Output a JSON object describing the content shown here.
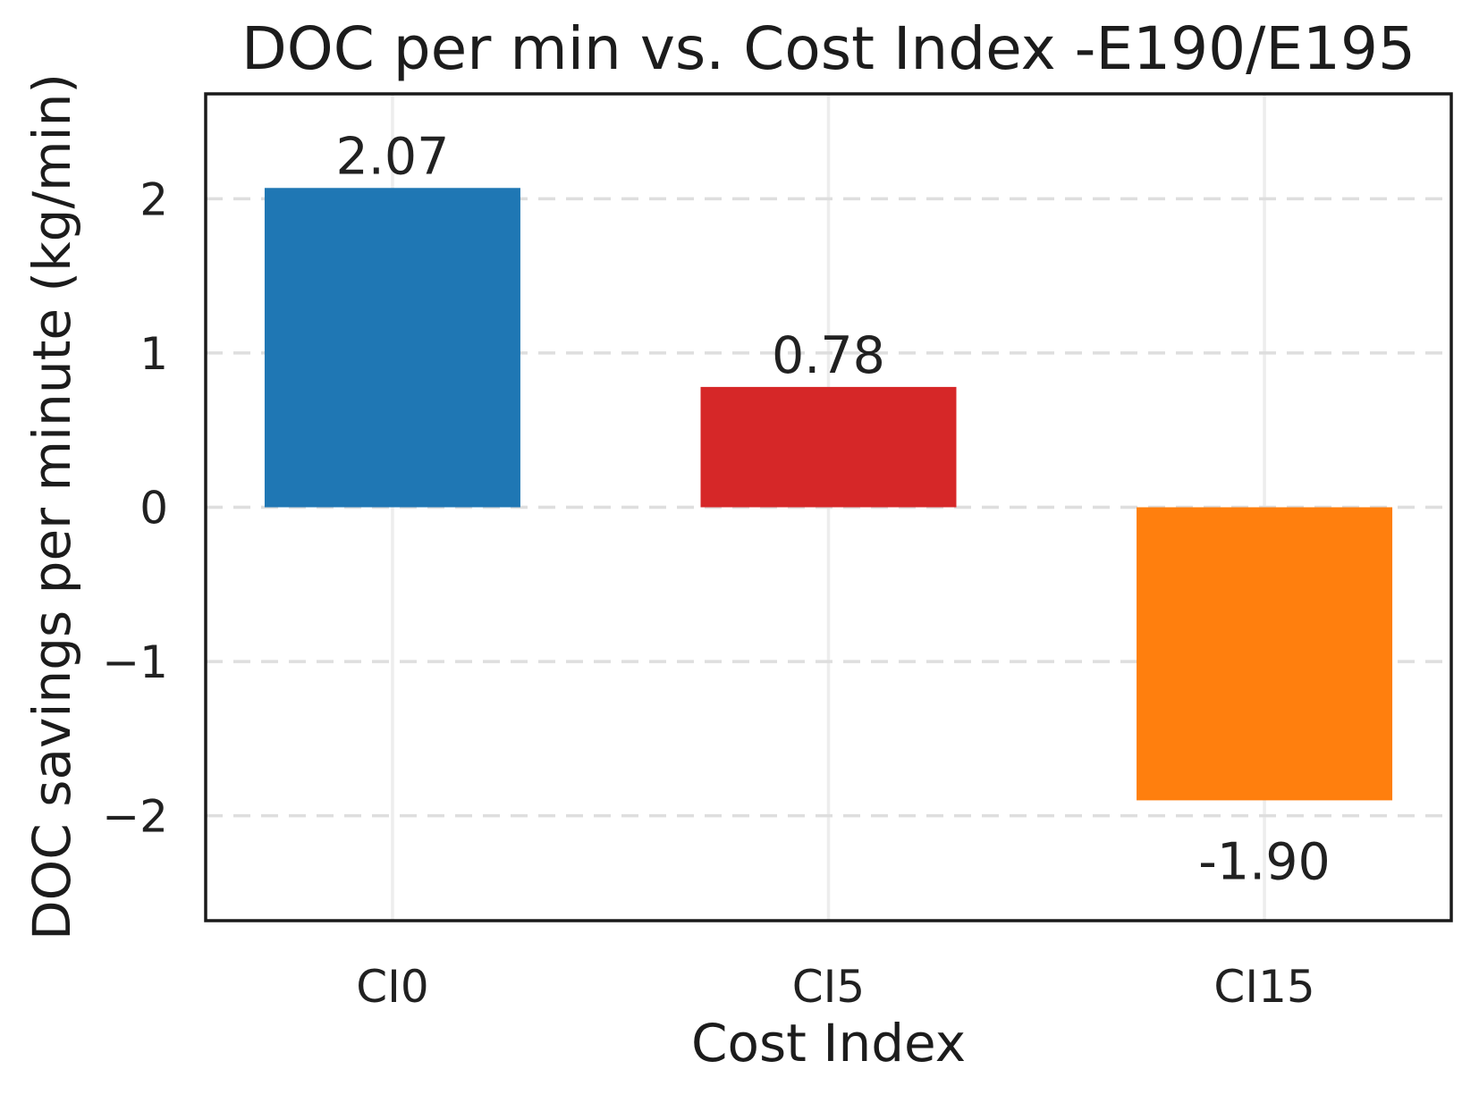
{
  "chart_data": {
    "type": "bar",
    "title": "DOC per min vs. Cost Index -E190/E195",
    "xlabel": "Cost Index",
    "ylabel": "DOC savings per minute (kg/min)",
    "categories": [
      "CI0",
      "CI5",
      "CI15"
    ],
    "values": [
      2.07,
      0.78,
      -1.9
    ],
    "value_labels": [
      "2.07",
      "0.78",
      "-1.90"
    ],
    "bar_colors": [
      "#1f77b4",
      "#d62728",
      "#ff7f0e"
    ],
    "yticks": [
      2,
      1,
      0,
      -1,
      -2
    ],
    "ytick_labels": [
      "2",
      "1",
      "0",
      "−1",
      "−2"
    ],
    "ylim": [
      -2.68,
      2.68
    ],
    "grid": {
      "horizontal": "dashed",
      "vertical": "solid"
    },
    "legend_position": "none",
    "colors": {
      "grid_horizontal": "#dedede",
      "grid_vertical": "#ededed",
      "spine": "#1a1a1a",
      "text": "#212121",
      "background": "#ffffff"
    }
  }
}
